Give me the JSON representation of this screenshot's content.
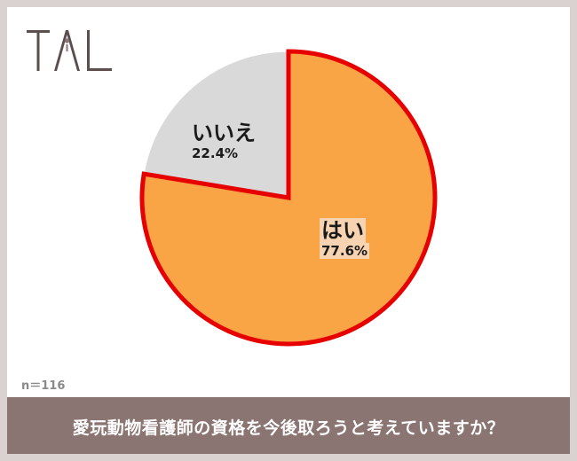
{
  "logo": {
    "text": "TAL",
    "color": "#5b4e4d",
    "accent": "#8b7573"
  },
  "sample_size": "n＝116",
  "banner": {
    "text": "愛玩動物看護師の資格を今後取ろうと考えていますか？",
    "color": "#8b7573"
  },
  "chart_data": {
    "type": "pie",
    "title": "",
    "slices": [
      {
        "label": "はい",
        "value": 77.6,
        "value_label": "77.6%",
        "color": "#f9a445",
        "highlighted": true
      },
      {
        "label": "いいえ",
        "value": 22.4,
        "value_label": "22.4%",
        "color": "#d9d9d9",
        "highlighted": false
      }
    ],
    "outline_color": "#e60000",
    "start_angle": "12 o'clock",
    "direction": "clockwise"
  }
}
